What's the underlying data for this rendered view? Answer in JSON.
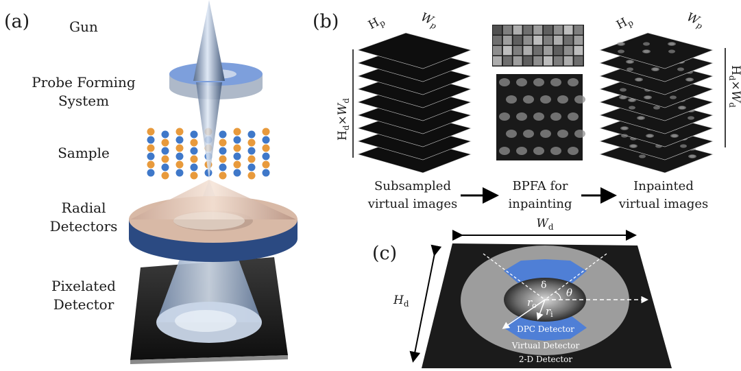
{
  "panel_a": {
    "tag": "(a)",
    "labels": {
      "gun": "Gun",
      "probe_line1": "Probe Forming",
      "probe_line2": "System",
      "sample": "Sample",
      "radial_line1": "Radial",
      "radial_line2": "Detectors",
      "pixel_line1": "Pixelated",
      "pixel_line2": "Detector"
    }
  },
  "panel_b": {
    "tag": "(b)",
    "hp": "H",
    "hp_sub": "p",
    "wp": "W",
    "wp_sub": "p",
    "hd": "H",
    "hd_sub": "d",
    "times": "×",
    "wd": "W",
    "wd_sub": "d",
    "captions": {
      "left_line1": "Subsampled",
      "left_line2": "virtual images",
      "mid_line1": "BPFA for",
      "mid_line2": "inpainting",
      "right_line1": "Inpainted",
      "right_line2": "virtual images"
    }
  },
  "panel_c": {
    "tag": "(c)",
    "wd": "W",
    "wd_sub": "d",
    "hd": "H",
    "hd_sub": "d",
    "delta": "δ",
    "theta": "θ",
    "ro": "r",
    "ro_sub": "o",
    "ri": "r",
    "ri_sub": "i",
    "dpc": "DPC Detector",
    "virtual": "Virtual Detector",
    "twod": "2-D Detector"
  },
  "colors": {
    "dpc_blue": "#4f7fd6",
    "ring_gray": "#9d9d9d",
    "detector_black": "#1b1b1b"
  }
}
